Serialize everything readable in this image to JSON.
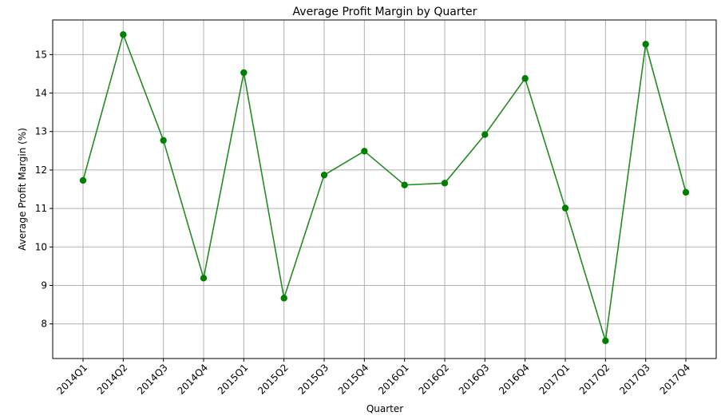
{
  "chart_data": {
    "type": "line",
    "title": "Average Profit Margin by Quarter",
    "xlabel": "Quarter",
    "ylabel": "Average Profit Margin (%)",
    "categories": [
      "2014Q1",
      "2014Q2",
      "2014Q3",
      "2014Q4",
      "2015Q1",
      "2015Q2",
      "2015Q3",
      "2015Q4",
      "2016Q1",
      "2016Q2",
      "2016Q3",
      "2016Q4",
      "2017Q1",
      "2017Q2",
      "2017Q3",
      "2017Q4"
    ],
    "series": [
      {
        "values": [
          11.73,
          15.52,
          12.77,
          9.19,
          14.53,
          8.67,
          11.87,
          12.49,
          11.61,
          11.66,
          12.92,
          14.38,
          11.01,
          7.56,
          15.27,
          11.42
        ],
        "color": "#228B22",
        "marker_color": "#008000"
      }
    ],
    "ylim": [
      7.1,
      15.9
    ],
    "yticks": [
      8,
      9,
      10,
      11,
      12,
      13,
      14,
      15
    ],
    "grid": true,
    "legend": false
  }
}
